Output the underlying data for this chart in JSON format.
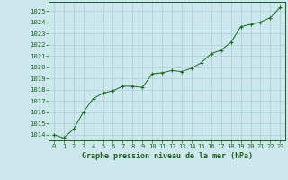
{
  "x": [
    0,
    1,
    2,
    3,
    4,
    5,
    6,
    7,
    8,
    9,
    10,
    11,
    12,
    13,
    14,
    15,
    16,
    17,
    18,
    19,
    20,
    21,
    22,
    23
  ],
  "y": [
    1014.0,
    1013.7,
    1014.5,
    1016.0,
    1017.2,
    1017.7,
    1017.9,
    1018.3,
    1018.3,
    1018.2,
    1019.4,
    1019.5,
    1019.7,
    1019.6,
    1019.9,
    1020.4,
    1021.2,
    1021.5,
    1022.2,
    1023.6,
    1023.8,
    1024.0,
    1024.4,
    1025.3
  ],
  "line_color": "#1a6b1a",
  "marker": "+",
  "bg_color": "#cce8ee",
  "grid_color": "#aaccd4",
  "text_color": "#1a5c1a",
  "xlabel": "Graphe pression niveau de la mer (hPa)",
  "ylim_min": 1013.5,
  "ylim_max": 1025.8,
  "xlim_min": -0.5,
  "xlim_max": 23.5,
  "yticks": [
    1014,
    1015,
    1016,
    1017,
    1018,
    1019,
    1020,
    1021,
    1022,
    1023,
    1024,
    1025
  ],
  "xticks": [
    0,
    1,
    2,
    3,
    4,
    5,
    6,
    7,
    8,
    9,
    10,
    11,
    12,
    13,
    14,
    15,
    16,
    17,
    18,
    19,
    20,
    21,
    22,
    23
  ],
  "xtick_labels": [
    "0",
    "1",
    "2",
    "3",
    "4",
    "5",
    "6",
    "7",
    "8",
    "9",
    "10",
    "11",
    "12",
    "13",
    "14",
    "15",
    "16",
    "17",
    "18",
    "19",
    "20",
    "21",
    "22",
    "23"
  ]
}
